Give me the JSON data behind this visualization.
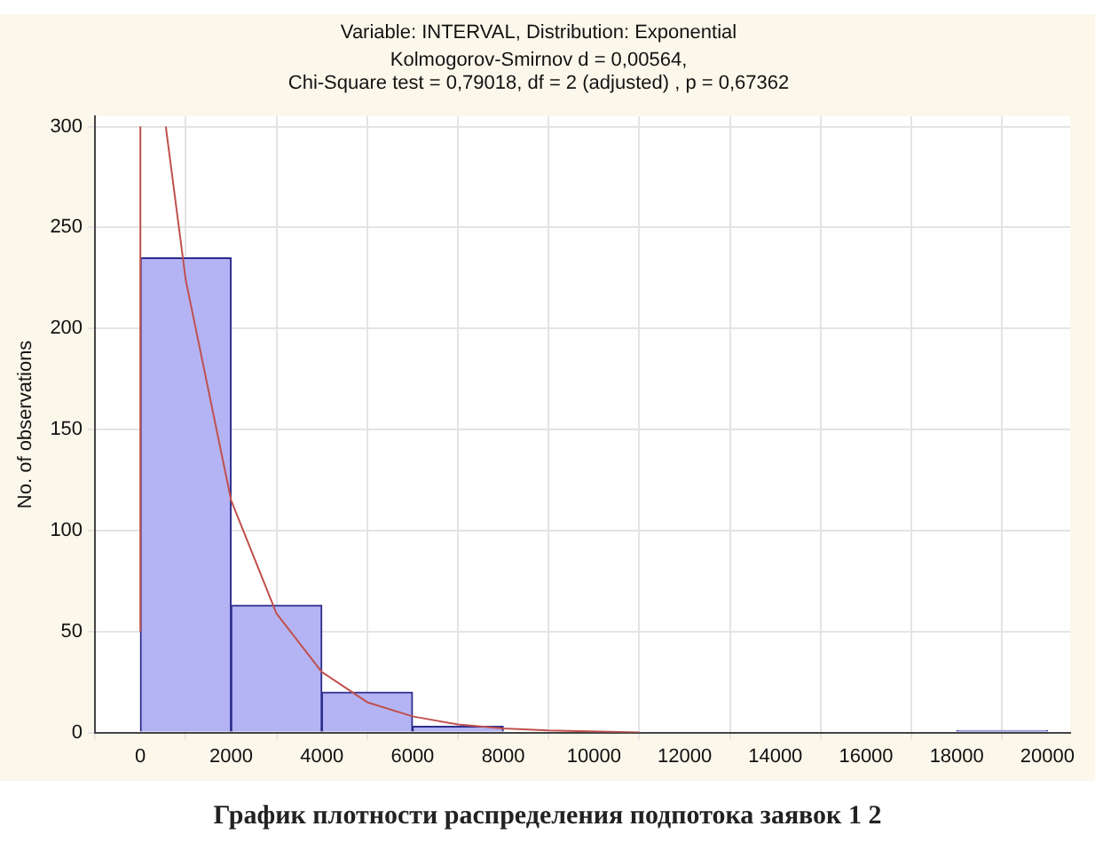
{
  "chart_data": {
    "type": "histogram",
    "title": "Variable: INTERVAL, Distribution: Exponential",
    "subtitle": "Kolmogorov-Smirnov d = 0,00564,\nChi-Square test = 0,79018, df = 2 (adjusted) , p = 0,67362",
    "ylabel": "No. of observations",
    "bins": [
      0,
      2000,
      4000,
      6000,
      8000,
      10000,
      12000,
      14000,
      16000,
      18000,
      20000
    ],
    "values": [
      235,
      63,
      20,
      3,
      null,
      0,
      0,
      0,
      0,
      1
    ],
    "color": "#b4b4f4",
    "series": [
      {
        "type": "line",
        "color": "#c0504d",
        "x": [
          0,
          0,
          300,
          560,
          1000,
          2000,
          3000,
          4000,
          5000,
          6000,
          7000,
          8000,
          9000,
          11000
        ],
        "values": [
          50,
          300,
          null,
          300,
          224,
          115,
          59,
          30,
          15,
          8,
          4,
          2,
          1,
          0
        ]
      }
    ],
    "xlim": [
      -1000,
      20500
    ],
    "xticks": [
      0,
      2000,
      4000,
      6000,
      8000,
      10000,
      12000,
      14000,
      16000,
      18000,
      20000
    ],
    "ylim": [
      0,
      305
    ],
    "yticks": [
      0,
      50,
      100,
      150,
      200,
      250,
      300
    ],
    "grid": true,
    "legend": false,
    "annotations": [
      "График плотности распределения подпотока заявок  1 2"
    ]
  }
}
